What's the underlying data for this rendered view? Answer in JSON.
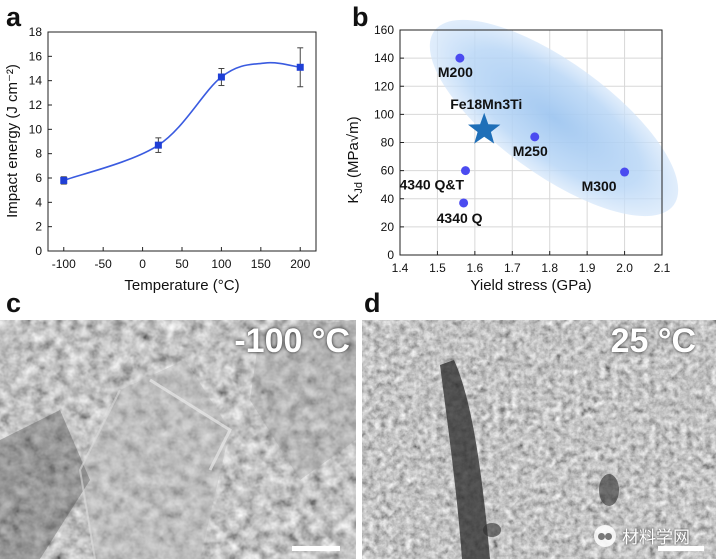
{
  "panels": {
    "a": "a",
    "b": "b",
    "c": "c",
    "d": "d"
  },
  "chart_data": [
    {
      "type": "line",
      "panel": "a",
      "title": "",
      "xlabel": "Temperature (°C)",
      "ylabel": "Impact energy (J cm⁻²)",
      "x": [
        -100,
        20,
        100,
        200
      ],
      "values": [
        5.8,
        8.7,
        14.3,
        15.1
      ],
      "error": [
        0.3,
        0.6,
        0.7,
        1.6
      ],
      "xlim": [
        -120,
        220
      ],
      "ylim": [
        0,
        18
      ],
      "xticks": [
        -100,
        -50,
        0,
        50,
        100,
        150,
        200
      ],
      "yticks": [
        0,
        2,
        4,
        6,
        8,
        10,
        12,
        14,
        16,
        18
      ],
      "series_color": "#1f3fd6",
      "fit_color": "#3a5be0"
    },
    {
      "type": "scatter",
      "panel": "b",
      "title": "",
      "xlabel": "Yield stress (GPa)",
      "ylabel_main": "K",
      "ylabel_sub": "Jd",
      "ylabel_units": "(MPa√m)",
      "xlim": [
        1.4,
        2.1
      ],
      "ylim": [
        0,
        160
      ],
      "xticks": [
        1.4,
        1.5,
        1.6,
        1.7,
        1.8,
        1.9,
        2.0,
        2.1
      ],
      "yticks": [
        0,
        20,
        40,
        60,
        80,
        100,
        120,
        140,
        160
      ],
      "grid": true,
      "points": [
        {
          "label": "M200",
          "x": 1.56,
          "y": 140
        },
        {
          "label": "M250",
          "x": 1.76,
          "y": 84
        },
        {
          "label": "M300",
          "x": 2.0,
          "y": 59
        },
        {
          "label": "4340 Q&T",
          "x": 1.575,
          "y": 60
        },
        {
          "label": "4340 Q",
          "x": 1.57,
          "y": 37
        }
      ],
      "star": {
        "label": "Fe18Mn3Ti",
        "x": 1.625,
        "y": 89
      },
      "point_color": "#4b4bf0",
      "star_color": "#1f6fb8",
      "ellipse_color": "#a9cdf3"
    }
  ],
  "sem": {
    "c_label": "-100 °C",
    "d_label": "25 °C"
  },
  "watermark": {
    "text": "材料学网"
  }
}
